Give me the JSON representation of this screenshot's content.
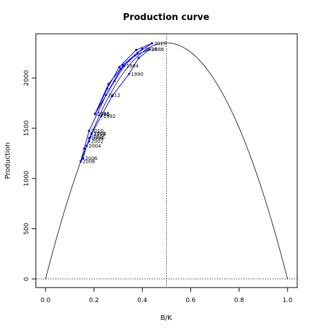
{
  "chart_data": {
    "type": "line",
    "title": "Production curve",
    "xlabel": "B/K",
    "ylabel": "Production",
    "xlim": [
      -0.04,
      1.04
    ],
    "ylim": [
      -85,
      2440
    ],
    "xticks": [
      0.0,
      0.2,
      0.4,
      0.6,
      0.8,
      1.0
    ],
    "xtick_labels": [
      "0.0",
      "0.2",
      "0.4",
      "0.6",
      "0.8",
      "1.0"
    ],
    "yticks": [
      0,
      500,
      1000,
      1500,
      2000
    ],
    "ytick_labels": [
      "0",
      "500",
      "1000",
      "1500",
      "2000"
    ],
    "grid": false,
    "legend": "none",
    "curve": {
      "type": "parabola",
      "peak_x": 0.5,
      "peak_y": 2350,
      "zero_points": [
        0.0,
        1.0
      ]
    },
    "reference_lines": {
      "vertical_x": 0.5,
      "horizontal_y": 0
    },
    "series": [
      {
        "color": "#0000ff",
        "points": [
          {
            "year": "1980",
            "x": 0.205,
            "y": 1640
          },
          {
            "year": "",
            "x": 0.255,
            "y": 1895
          },
          {
            "year": "",
            "x": 0.305,
            "y": 2110
          },
          {
            "year": "",
            "x": 0.375,
            "y": 2280
          },
          {
            "year": "2015",
            "x": 0.44,
            "y": 2345
          },
          {
            "year": "",
            "x": 0.38,
            "y": 2250
          },
          {
            "year": "1984",
            "x": 0.325,
            "y": 2120
          },
          {
            "year": "",
            "x": 0.285,
            "y": 1970
          },
          {
            "year": "1986",
            "x": 0.205,
            "y": 1645
          },
          {
            "year": "",
            "x": 0.26,
            "y": 1940
          },
          {
            "year": "",
            "x": 0.31,
            "y": 2090
          },
          {
            "year": "",
            "x": 0.37,
            "y": 2225
          },
          {
            "year": "1988",
            "x": 0.43,
            "y": 2285
          },
          {
            "year": "",
            "x": 0.385,
            "y": 2200
          },
          {
            "year": "1990",
            "x": 0.345,
            "y": 2040
          },
          {
            "year": "",
            "x": 0.275,
            "y": 1820
          },
          {
            "year": "1992",
            "x": 0.23,
            "y": 1620
          },
          {
            "year": "1994",
            "x": 0.18,
            "y": 1400
          },
          {
            "year": "1996",
            "x": 0.185,
            "y": 1410
          },
          {
            "year": "1998",
            "x": 0.19,
            "y": 1440
          },
          {
            "year": "2000",
            "x": 0.19,
            "y": 1450
          },
          {
            "year": "2002",
            "x": 0.18,
            "y": 1370
          },
          {
            "year": "2004",
            "x": 0.17,
            "y": 1325
          },
          {
            "year": "2006",
            "x": 0.155,
            "y": 1200
          },
          {
            "year": "2008",
            "x": 0.145,
            "y": 1170
          },
          {
            "year": "",
            "x": 0.16,
            "y": 1300
          },
          {
            "year": "2010",
            "x": 0.18,
            "y": 1475
          },
          {
            "year": "2012",
            "x": 0.25,
            "y": 1830
          },
          {
            "year": "",
            "x": 0.32,
            "y": 2130
          },
          {
            "year": "2014",
            "x": 0.4,
            "y": 2290
          }
        ]
      }
    ]
  }
}
